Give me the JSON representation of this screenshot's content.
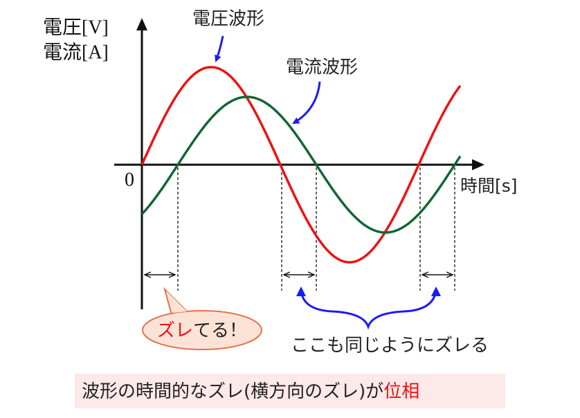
{
  "axis": {
    "y_label_voltage": "電圧[V]",
    "y_label_current": "電流[A]",
    "origin": "0",
    "x_label": "時間[s]"
  },
  "labels": {
    "voltage_wave": "電圧波形",
    "current_wave": "電流波形"
  },
  "callout": {
    "highlight": "ズレ",
    "rest": "てる！"
  },
  "brace_note": "ここも同じようにズレる",
  "caption": {
    "text": "波形の時間的なズレ(横方向のズレ)が",
    "highlight": "位相"
  }
}
